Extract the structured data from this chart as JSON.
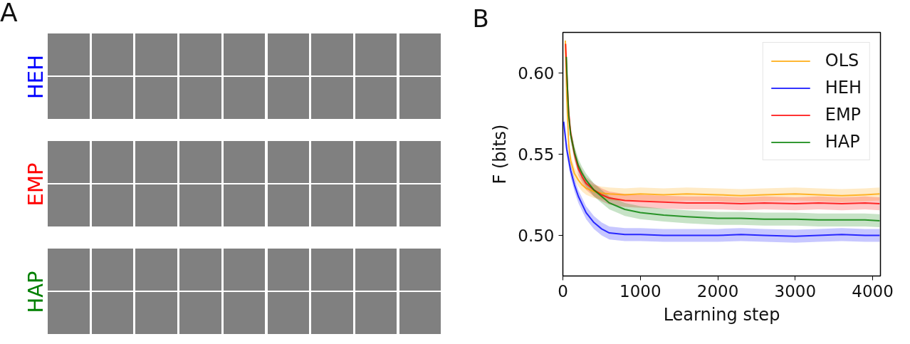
{
  "chart_data": [
    {
      "type": "other",
      "title": "A",
      "categories": [
        "HEH",
        "EMP",
        "HAP"
      ],
      "colors": [
        "#0000ff",
        "#ff0000",
        "#008000"
      ]
    },
    {
      "type": "line",
      "title": "B",
      "xlabel": "Learning step",
      "ylabel": "F (bits)",
      "xlim": [
        0,
        4100
      ],
      "ylim": [
        0.475,
        0.625
      ],
      "xticks": [
        0,
        1000,
        2000,
        3000,
        4000
      ],
      "yticks": [
        {
          "value": 0.5,
          "label": "0.50"
        },
        {
          "value": 0.55,
          "label": "0.55"
        },
        {
          "value": 0.6,
          "label": "0.60"
        }
      ],
      "grid": false,
      "legend": "top right",
      "series": [
        {
          "name": "OLS",
          "color": "#ffa500",
          "x": [
            32,
            50,
            75,
            100,
            150,
            200,
            250,
            300,
            400,
            500,
            600,
            800,
            1000,
            1300,
            1600,
            2000,
            2300,
            2600,
            3000,
            3300,
            3600,
            3900,
            4090
          ],
          "values": [
            0.62,
            0.585,
            0.556,
            0.546,
            0.538,
            0.534,
            0.531,
            0.529,
            0.527,
            0.526,
            0.5255,
            0.525,
            0.5255,
            0.525,
            0.5255,
            0.525,
            0.5245,
            0.525,
            0.5255,
            0.525,
            0.5245,
            0.525,
            0.5255
          ],
          "lower": [
            0.616,
            0.581,
            0.552,
            0.542,
            0.534,
            0.53,
            0.527,
            0.525,
            0.523,
            0.522,
            0.5215,
            0.521,
            0.5215,
            0.521,
            0.5215,
            0.521,
            0.5205,
            0.521,
            0.5215,
            0.521,
            0.5205,
            0.521,
            0.5215
          ],
          "upper": [
            0.624,
            0.589,
            0.56,
            0.55,
            0.542,
            0.538,
            0.535,
            0.533,
            0.531,
            0.53,
            0.5295,
            0.529,
            0.5295,
            0.529,
            0.5295,
            0.529,
            0.5285,
            0.529,
            0.5295,
            0.529,
            0.5285,
            0.529,
            0.5295
          ]
        },
        {
          "name": "HEH",
          "color": "#0000ff",
          "x": [
            10,
            50,
            100,
            150,
            200,
            300,
            400,
            500,
            600,
            800,
            1000,
            1300,
            1600,
            2000,
            2300,
            2600,
            3000,
            3300,
            3600,
            3900,
            4090
          ],
          "values": [
            0.57,
            0.553,
            0.54,
            0.531,
            0.524,
            0.514,
            0.508,
            0.504,
            0.5015,
            0.5005,
            0.5005,
            0.5,
            0.5,
            0.5,
            0.5005,
            0.5,
            0.4995,
            0.5,
            0.5005,
            0.5,
            0.5
          ],
          "lower": [
            0.566,
            0.549,
            0.536,
            0.527,
            0.52,
            0.51,
            0.504,
            0.5,
            0.4975,
            0.4965,
            0.4965,
            0.496,
            0.496,
            0.496,
            0.4965,
            0.496,
            0.4955,
            0.496,
            0.4965,
            0.496,
            0.496
          ],
          "upper": [
            0.574,
            0.557,
            0.544,
            0.535,
            0.528,
            0.518,
            0.512,
            0.508,
            0.5055,
            0.5045,
            0.5045,
            0.504,
            0.504,
            0.504,
            0.5045,
            0.504,
            0.5035,
            0.504,
            0.5045,
            0.504,
            0.504
          ]
        },
        {
          "name": "EMP",
          "color": "#ff0000",
          "x": [
            35,
            50,
            75,
            100,
            150,
            200,
            250,
            300,
            400,
            500,
            600,
            800,
            1000,
            1300,
            1600,
            2000,
            2300,
            2600,
            3000,
            3300,
            3600,
            3900,
            4090
          ],
          "values": [
            0.618,
            0.6,
            0.576,
            0.563,
            0.55,
            0.541,
            0.536,
            0.532,
            0.528,
            0.525,
            0.523,
            0.5215,
            0.521,
            0.5205,
            0.52,
            0.52,
            0.5195,
            0.52,
            0.5195,
            0.52,
            0.5195,
            0.52,
            0.5195
          ],
          "lower": [
            0.614,
            0.596,
            0.572,
            0.559,
            0.546,
            0.537,
            0.532,
            0.528,
            0.524,
            0.521,
            0.519,
            0.5175,
            0.517,
            0.5165,
            0.516,
            0.516,
            0.5155,
            0.516,
            0.5155,
            0.516,
            0.5155,
            0.516,
            0.5155
          ],
          "upper": [
            0.622,
            0.604,
            0.58,
            0.567,
            0.554,
            0.545,
            0.54,
            0.536,
            0.532,
            0.529,
            0.527,
            0.5255,
            0.525,
            0.5245,
            0.524,
            0.524,
            0.5235,
            0.524,
            0.5235,
            0.524,
            0.5235,
            0.524,
            0.5235
          ]
        },
        {
          "name": "HAP",
          "color": "#008000",
          "x": [
            45,
            60,
            75,
            100,
            150,
            200,
            250,
            300,
            400,
            500,
            600,
            700,
            800,
            1000,
            1300,
            1600,
            2000,
            2300,
            2600,
            3000,
            3300,
            3600,
            3900,
            4090
          ],
          "values": [
            0.61,
            0.59,
            0.574,
            0.562,
            0.551,
            0.543,
            0.538,
            0.534,
            0.528,
            0.524,
            0.52,
            0.518,
            0.516,
            0.514,
            0.5125,
            0.5115,
            0.5105,
            0.5105,
            0.51,
            0.51,
            0.5095,
            0.5095,
            0.5095,
            0.509
          ],
          "lower": [
            0.606,
            0.586,
            0.57,
            0.558,
            0.547,
            0.539,
            0.534,
            0.53,
            0.524,
            0.52,
            0.516,
            0.514,
            0.512,
            0.51,
            0.5085,
            0.5075,
            0.5065,
            0.5065,
            0.506,
            0.506,
            0.5055,
            0.5055,
            0.5055,
            0.505
          ],
          "upper": [
            0.614,
            0.594,
            0.578,
            0.566,
            0.555,
            0.547,
            0.542,
            0.538,
            0.532,
            0.528,
            0.524,
            0.522,
            0.52,
            0.518,
            0.5165,
            0.5155,
            0.5145,
            0.5145,
            0.514,
            0.514,
            0.5135,
            0.5135,
            0.5135,
            0.513
          ]
        }
      ]
    }
  ]
}
